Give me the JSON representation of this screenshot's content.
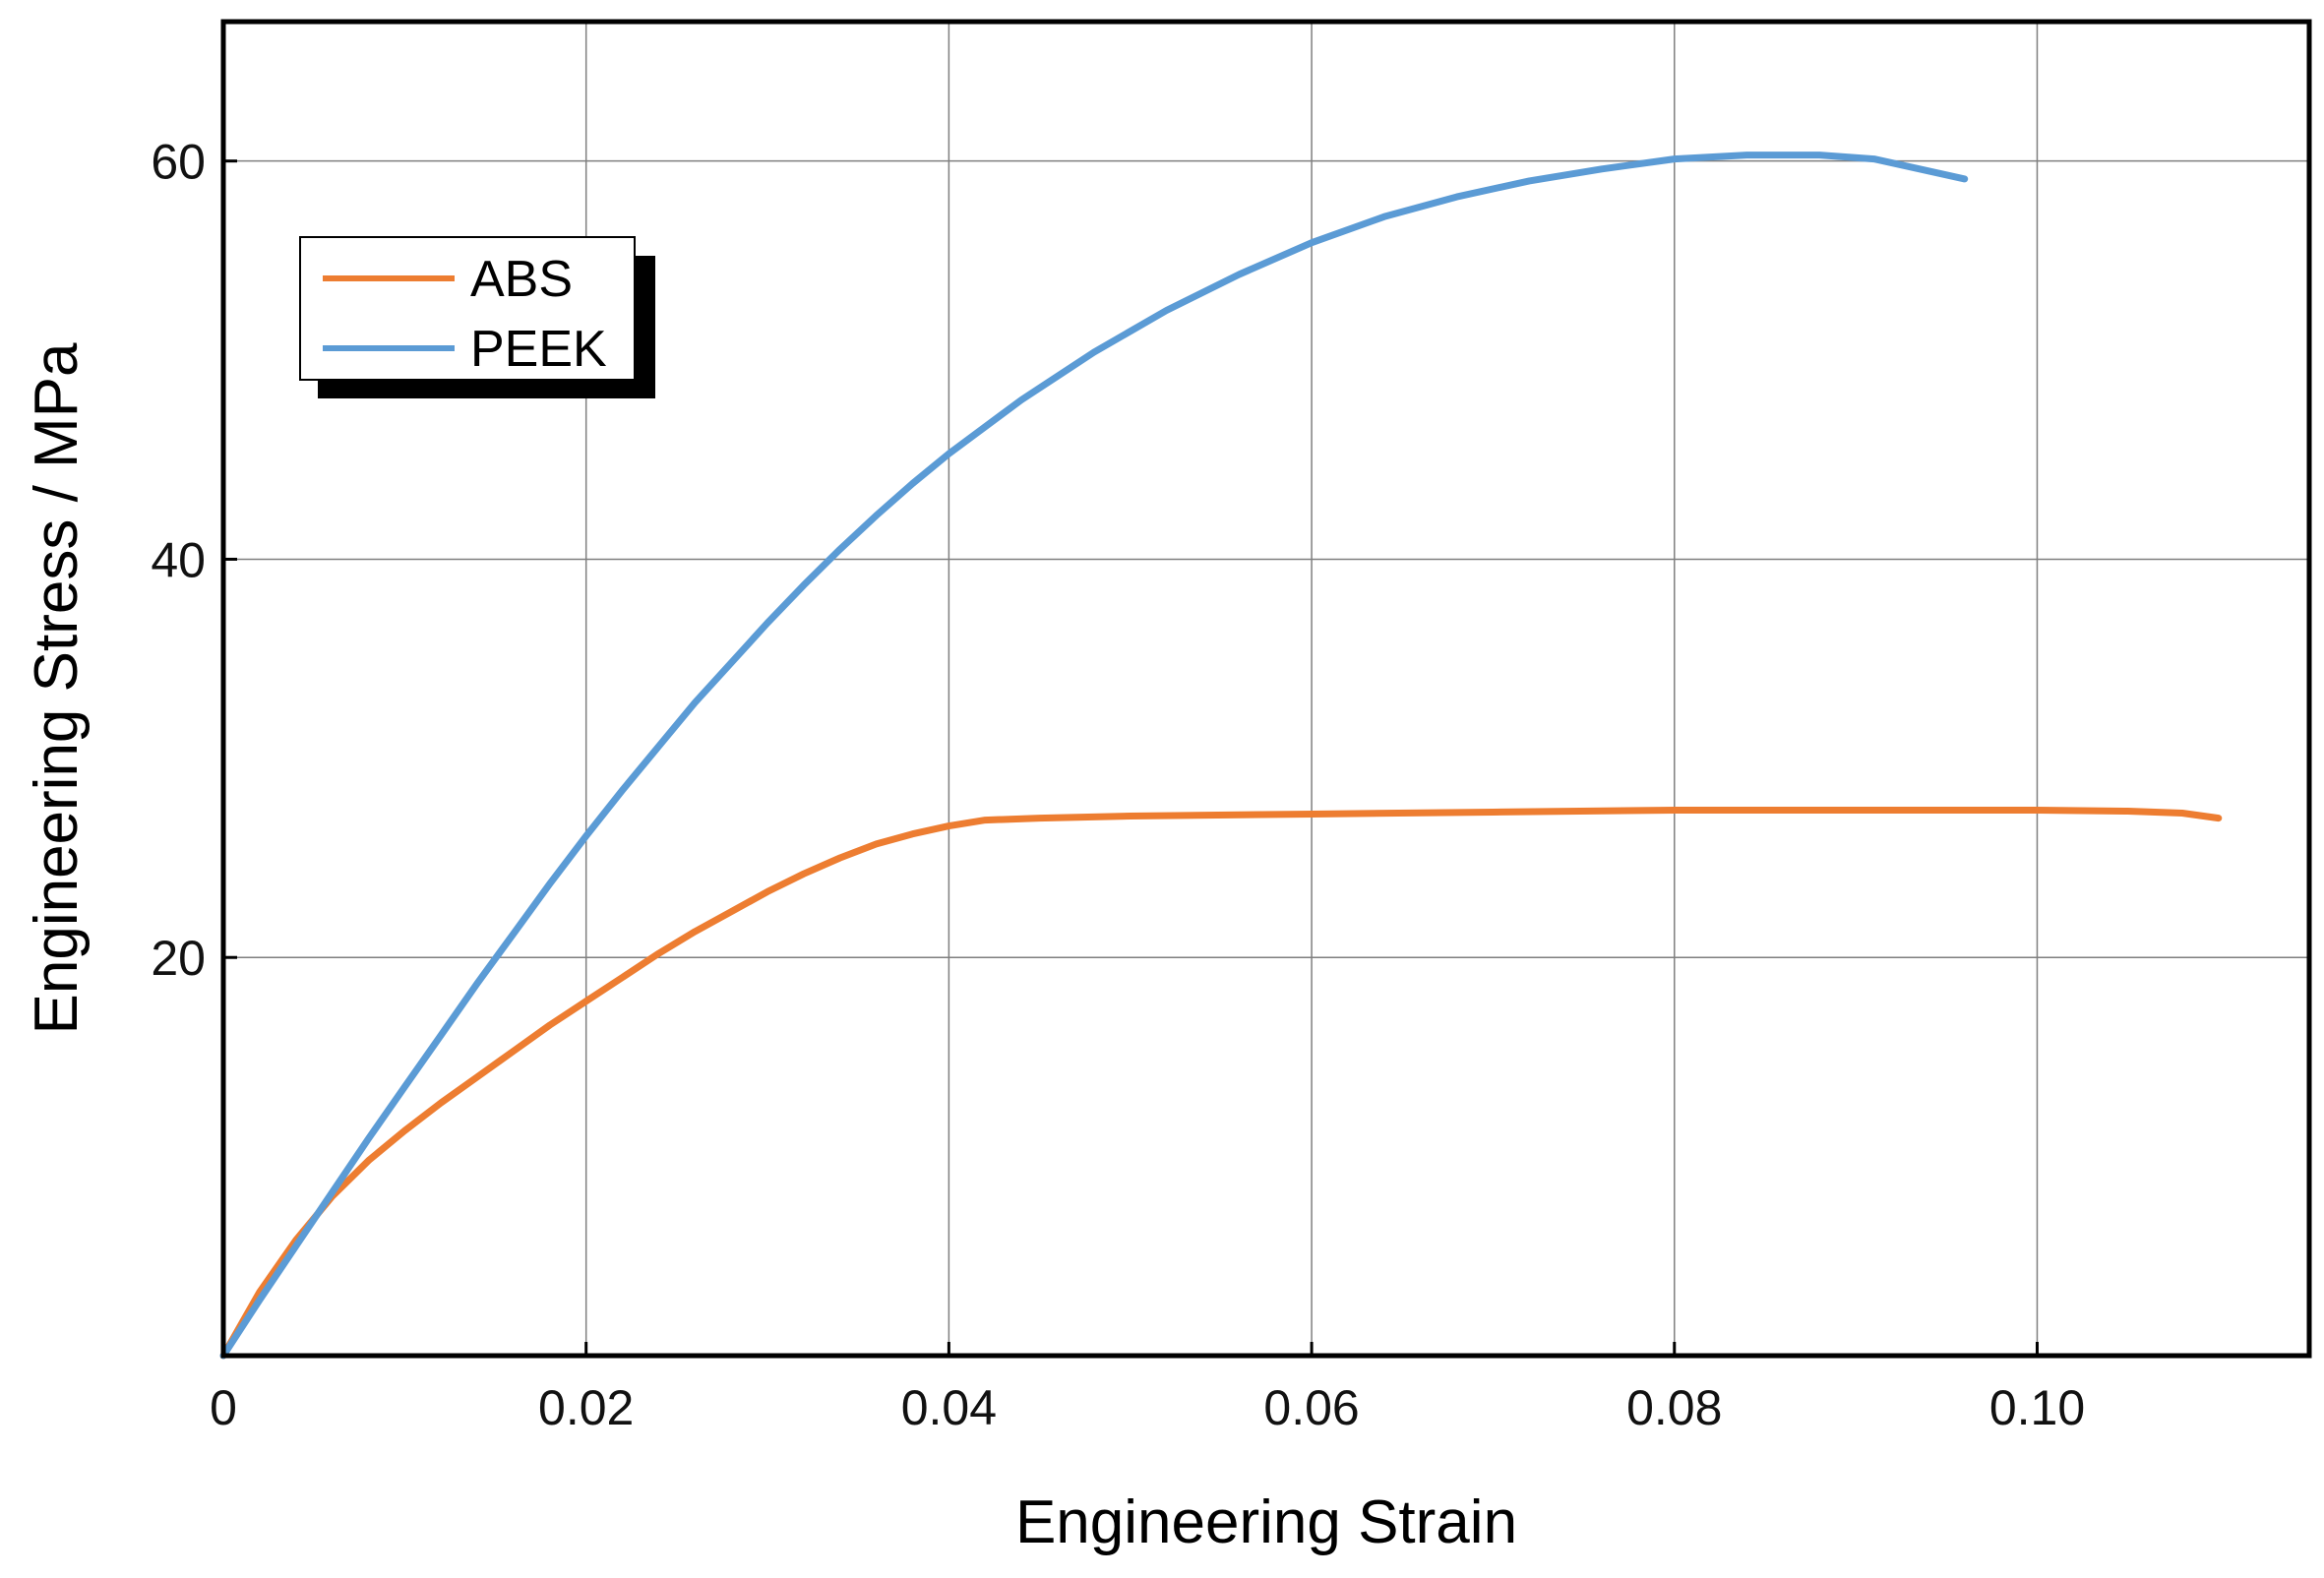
{
  "chart_data": {
    "type": "line",
    "title": "",
    "xlabel": "Engineering Strain",
    "ylabel": "Engineering Stress / MPa",
    "xlim": [
      0,
      0.115
    ],
    "ylim": [
      0,
      67
    ],
    "grid": true,
    "legend_position": "top-left",
    "x_ticks": [
      {
        "value": 0,
        "label": "0"
      },
      {
        "value": 0.02,
        "label": "0.02"
      },
      {
        "value": 0.04,
        "label": "0.04"
      },
      {
        "value": 0.06,
        "label": "0.06"
      },
      {
        "value": 0.08,
        "label": "0.08"
      },
      {
        "value": 0.1,
        "label": "0.10"
      }
    ],
    "y_ticks": [
      {
        "value": 20,
        "label": "20"
      },
      {
        "value": 40,
        "label": "40"
      },
      {
        "value": 60,
        "label": "60"
      }
    ],
    "series": [
      {
        "name": "ABS",
        "color": "#ed7d31",
        "points": [
          [
            0,
            0
          ],
          [
            0.002,
            3.2
          ],
          [
            0.004,
            5.8
          ],
          [
            0.006,
            8.0
          ],
          [
            0.008,
            9.8
          ],
          [
            0.01,
            11.3
          ],
          [
            0.012,
            12.7
          ],
          [
            0.014,
            14.0
          ],
          [
            0.016,
            15.3
          ],
          [
            0.018,
            16.6
          ],
          [
            0.02,
            17.8
          ],
          [
            0.022,
            19.0
          ],
          [
            0.024,
            20.2
          ],
          [
            0.026,
            21.3
          ],
          [
            0.028,
            22.3
          ],
          [
            0.03,
            23.3
          ],
          [
            0.032,
            24.2
          ],
          [
            0.034,
            25.0
          ],
          [
            0.036,
            25.7
          ],
          [
            0.038,
            26.2
          ],
          [
            0.04,
            26.6
          ],
          [
            0.042,
            26.9
          ],
          [
            0.045,
            27.0
          ],
          [
            0.05,
            27.1
          ],
          [
            0.06,
            27.2
          ],
          [
            0.07,
            27.3
          ],
          [
            0.08,
            27.4
          ],
          [
            0.09,
            27.4
          ],
          [
            0.1,
            27.4
          ],
          [
            0.105,
            27.35
          ],
          [
            0.108,
            27.25
          ],
          [
            0.11,
            27.0
          ]
        ]
      },
      {
        "name": "PEEK",
        "color": "#5b9bd5",
        "points": [
          [
            0,
            0
          ],
          [
            0.002,
            2.8
          ],
          [
            0.004,
            5.5
          ],
          [
            0.006,
            8.2
          ],
          [
            0.008,
            10.9
          ],
          [
            0.01,
            13.5
          ],
          [
            0.012,
            16.1
          ],
          [
            0.014,
            18.7
          ],
          [
            0.016,
            21.2
          ],
          [
            0.018,
            23.7
          ],
          [
            0.02,
            26.1
          ],
          [
            0.022,
            28.4
          ],
          [
            0.024,
            30.6
          ],
          [
            0.026,
            32.8
          ],
          [
            0.028,
            34.8
          ],
          [
            0.03,
            36.8
          ],
          [
            0.032,
            38.7
          ],
          [
            0.034,
            40.5
          ],
          [
            0.036,
            42.2
          ],
          [
            0.038,
            43.8
          ],
          [
            0.04,
            45.3
          ],
          [
            0.044,
            48.0
          ],
          [
            0.048,
            50.4
          ],
          [
            0.052,
            52.5
          ],
          [
            0.056,
            54.3
          ],
          [
            0.06,
            55.9
          ],
          [
            0.064,
            57.2
          ],
          [
            0.068,
            58.2
          ],
          [
            0.072,
            59.0
          ],
          [
            0.076,
            59.6
          ],
          [
            0.08,
            60.1
          ],
          [
            0.084,
            60.3
          ],
          [
            0.088,
            60.3
          ],
          [
            0.091,
            60.1
          ],
          [
            0.093,
            59.7
          ],
          [
            0.096,
            59.1
          ]
        ]
      }
    ]
  }
}
